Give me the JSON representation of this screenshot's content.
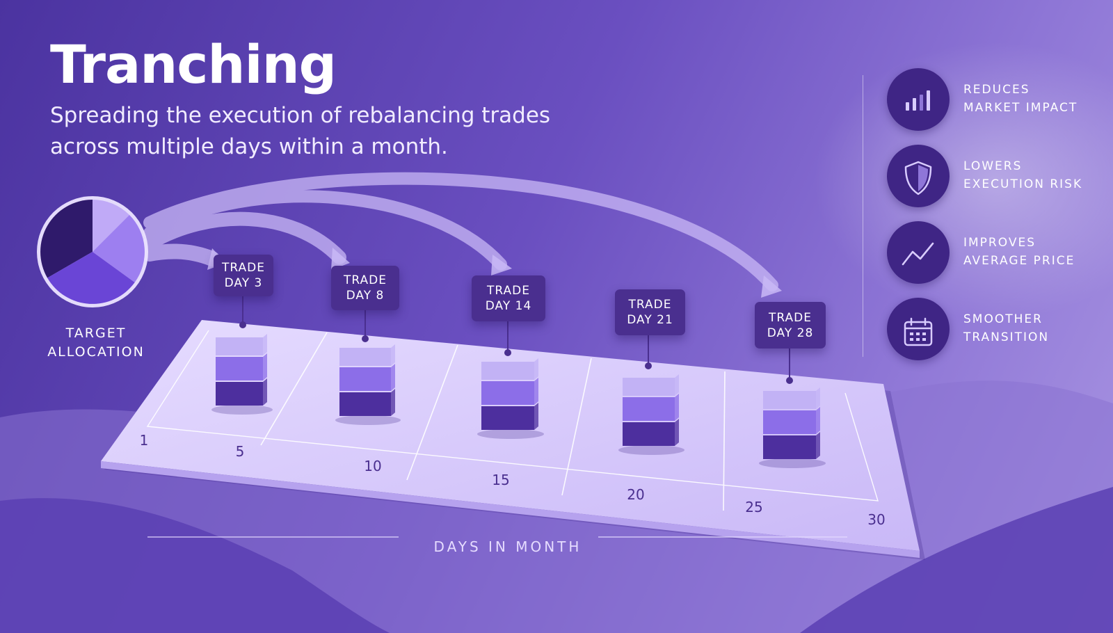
{
  "title": "Tranching",
  "subtitle": "Spreading the execution of rebalancing trades across multiple days within a month.",
  "target": {
    "label_line1": "TARGET",
    "label_line2": "ALLOCATION"
  },
  "trades": [
    {
      "line1": "TRADE",
      "line2": "DAY 3",
      "day": 3
    },
    {
      "line1": "TRADE",
      "line2": "DAY 8",
      "day": 8
    },
    {
      "line1": "TRADE",
      "line2": "DAY 14",
      "day": 14
    },
    {
      "line1": "TRADE",
      "line2": "DAY 21",
      "day": 21
    },
    {
      "line1": "TRADE",
      "line2": "DAY 28",
      "day": 28
    }
  ],
  "axis": {
    "label": "DAYS IN MONTH",
    "ticks": [
      "1",
      "5",
      "10",
      "15",
      "20",
      "25",
      "30"
    ]
  },
  "benefits": [
    {
      "icon": "bar-chart-icon",
      "line1": "REDUCES",
      "line2": "MARKET IMPACT"
    },
    {
      "icon": "shield-icon",
      "line1": "LOWERS",
      "line2": "EXECUTION RISK"
    },
    {
      "icon": "trend-up-icon",
      "line1": "IMPROVES",
      "line2": "AVERAGE PRICE"
    },
    {
      "icon": "calendar-icon",
      "line1": "SMOOTHER",
      "line2": "TRANSITION"
    }
  ],
  "colors": {
    "background_dark": "#4b33a0",
    "background_light": "#a995e2",
    "card": "#4a2f8f",
    "icon_circle": "#3f2585",
    "segment_light": "#c2b2f5",
    "segment_mid": "#8c6ee8",
    "segment_dark": "#4d2f9e",
    "platform": "#ddd2fb"
  }
}
